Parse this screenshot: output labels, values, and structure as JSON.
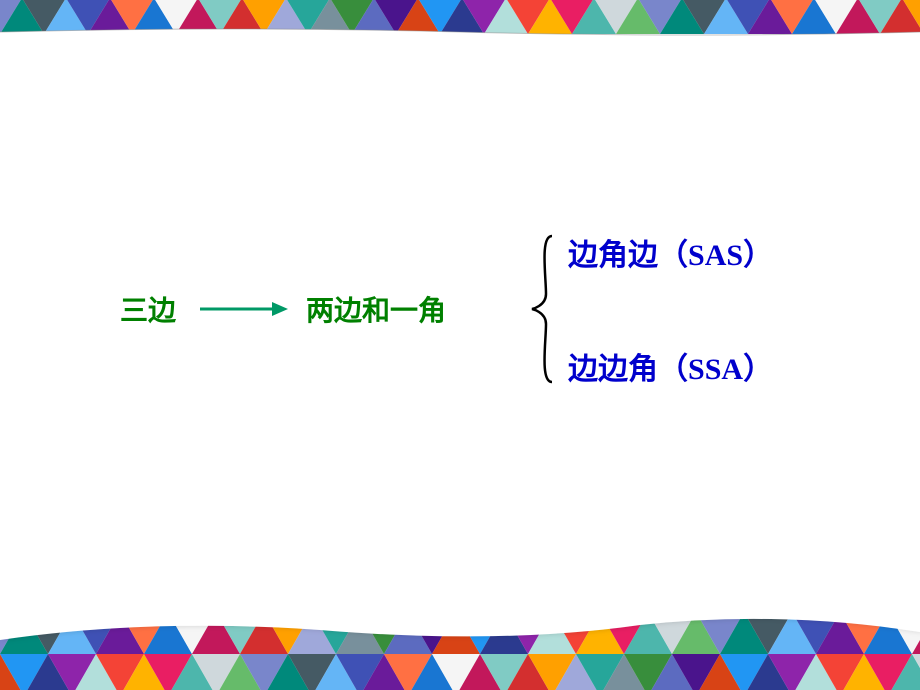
{
  "diagram": {
    "left_label": "三边",
    "mid_label": "两边和一角",
    "right_items": [
      {
        "cn": "边角边",
        "abbr": "SAS"
      },
      {
        "cn": "边边角",
        "abbr": "SSA"
      }
    ],
    "colors": {
      "left_text": "#008000",
      "mid_text": "#008000",
      "arrow": "#009966",
      "right_text": "#0000cc",
      "brace": "#000000"
    },
    "font_size_main": 28,
    "font_size_right": 30
  },
  "triangle_palette": [
    "#2b3a8f",
    "#3f51b5",
    "#5c6bc0",
    "#7986cb",
    "#9fa8da",
    "#e91e63",
    "#c2185b",
    "#8e24aa",
    "#6a1b9a",
    "#4a148c",
    "#00897b",
    "#26a69a",
    "#4db6ac",
    "#80cbc4",
    "#b2dfdb",
    "#ff7043",
    "#d84315",
    "#455a64",
    "#78909c",
    "#cfd8dc",
    "#d32f2f",
    "#f44336",
    "#1976d2",
    "#2196f3",
    "#64b5f6",
    "#388e3c",
    "#66bb6a",
    "#ffa000",
    "#ffb300",
    "#f5f5f5"
  ]
}
